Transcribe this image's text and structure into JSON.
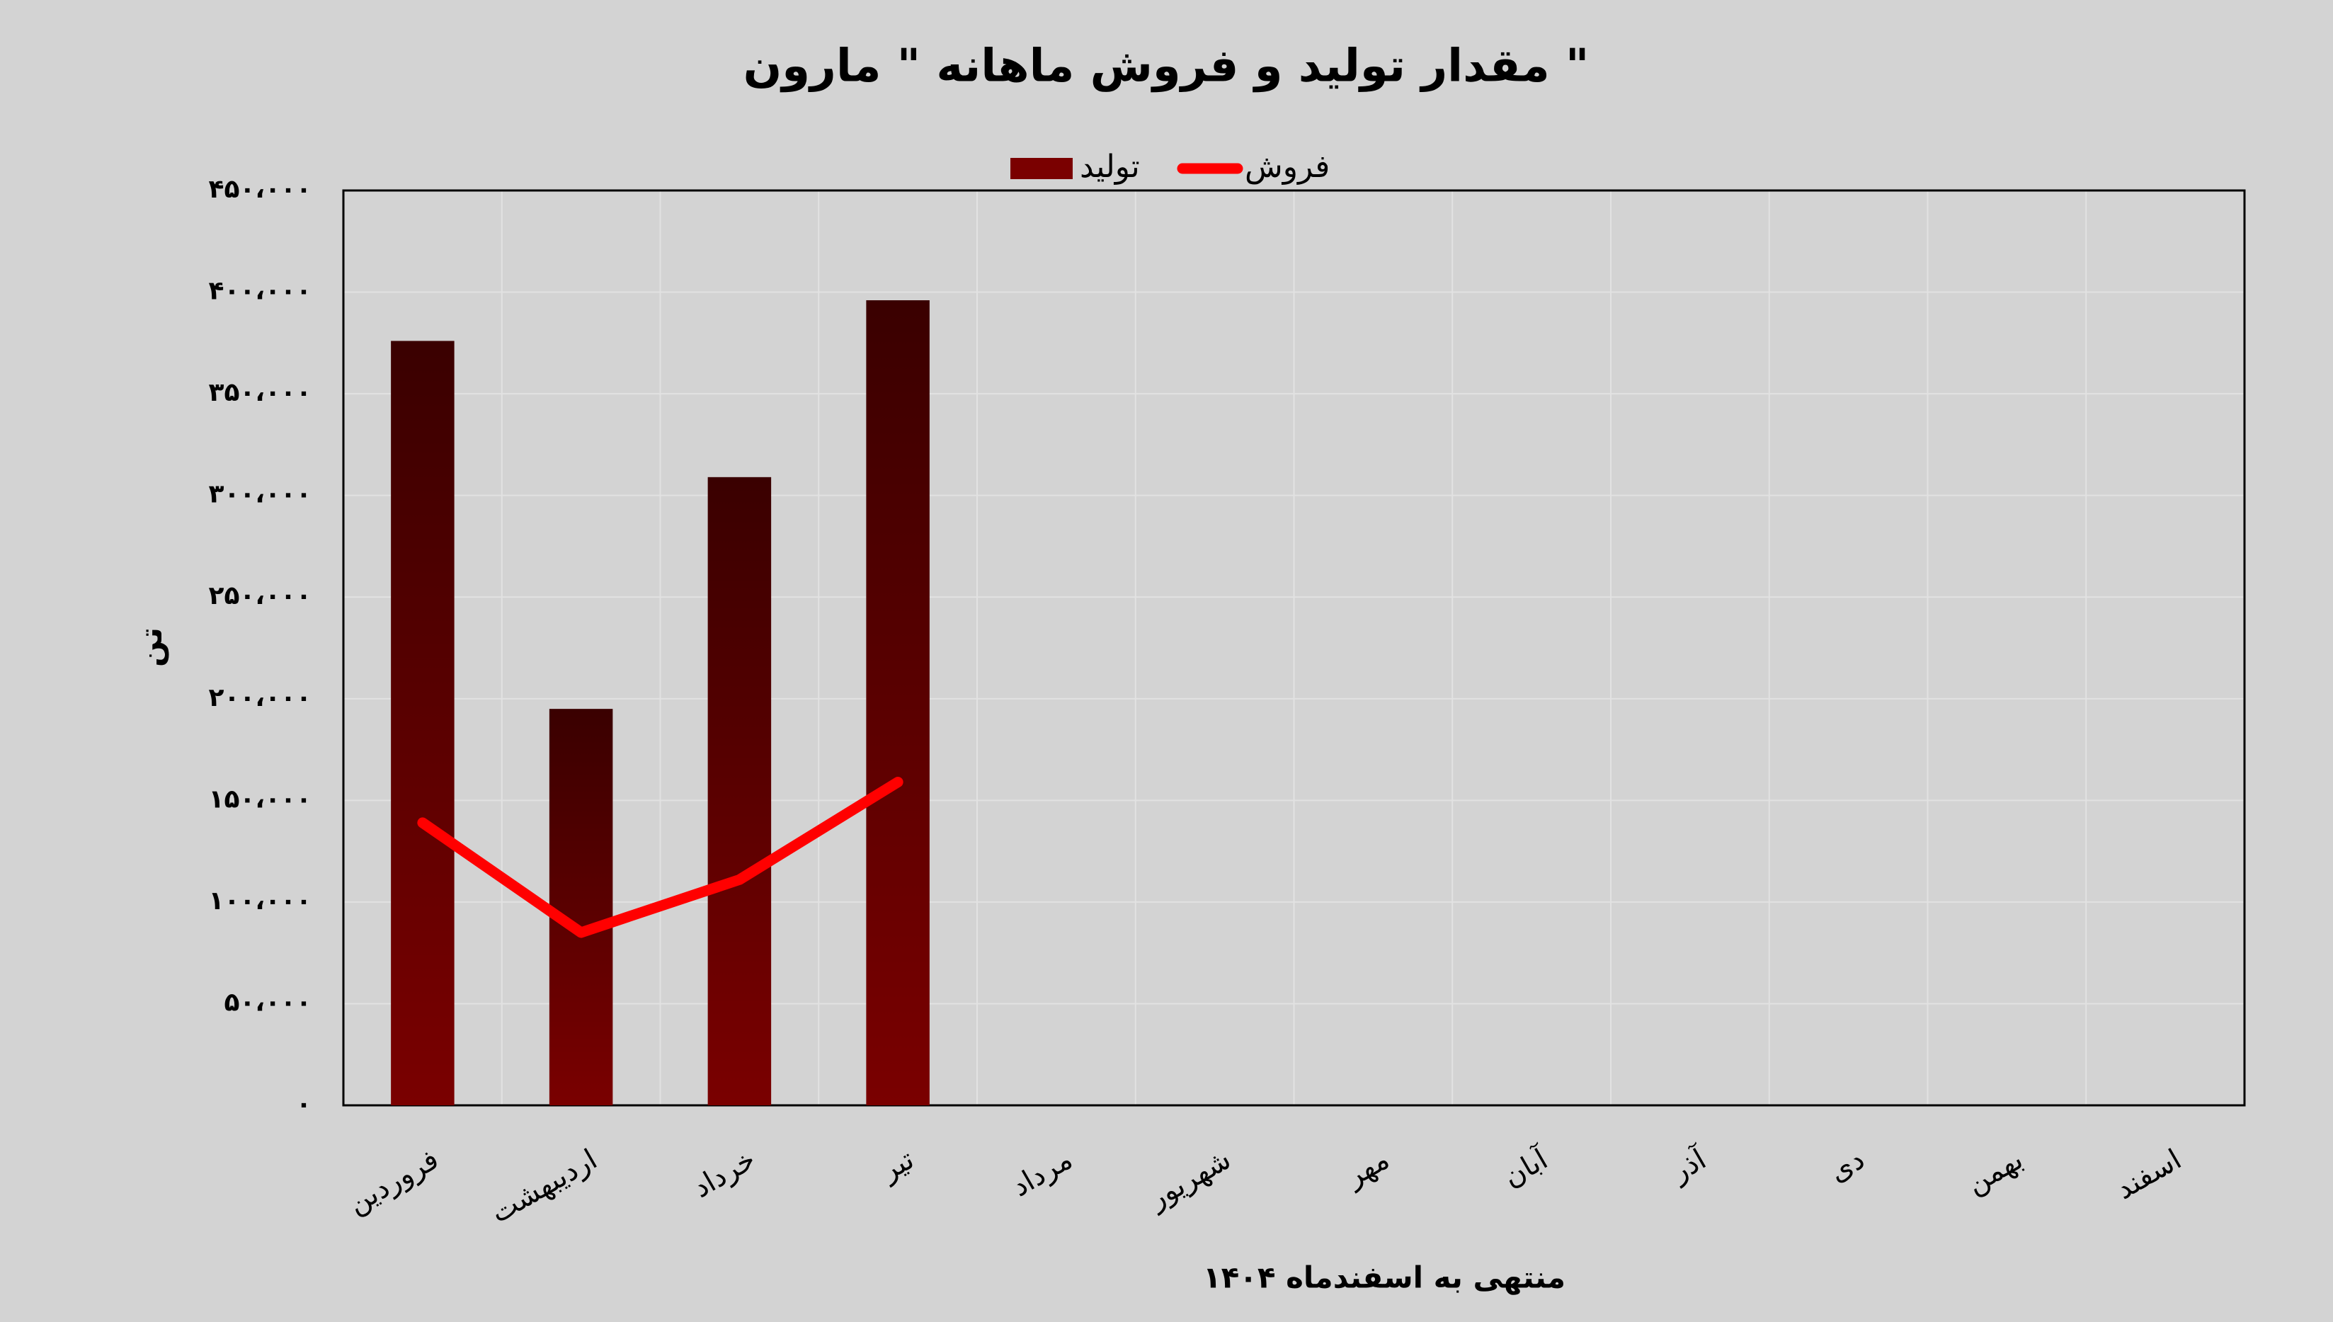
{
  "chart_data": {
    "type": "bar",
    "title": "مقدار تولید و فروش ماهانه \" مارون \"",
    "y_label": "تن",
    "x_label": "منتهی به اسفندماه ۱۴۰۴",
    "categories": [
      "فروردین",
      "اردیبهشت",
      "خرداد",
      "تیر",
      "مرداد",
      "شهریور",
      "مهر",
      "آبان",
      "آذر",
      "دی",
      "بهمن",
      "اسفند"
    ],
    "series": [
      {
        "name": "تولید",
        "type": "bar",
        "color": "#7a0000",
        "values": [
          376000,
          195000,
          309000,
          396000,
          null,
          null,
          null,
          null,
          null,
          null,
          null,
          null
        ]
      },
      {
        "name": "فروش",
        "type": "line",
        "color": "#ff0000",
        "values": [
          139000,
          85000,
          111000,
          159000,
          null,
          null,
          null,
          null,
          null,
          null,
          null,
          null
        ]
      }
    ],
    "ylim": [
      0,
      450000
    ],
    "yticks": [
      {
        "value": 0,
        "label": "۰"
      },
      {
        "value": 50000,
        "label": "۵۰،۰۰۰"
      },
      {
        "value": 100000,
        "label": "۱۰۰،۰۰۰"
      },
      {
        "value": 150000,
        "label": "۱۵۰،۰۰۰"
      },
      {
        "value": 200000,
        "label": "۲۰۰،۰۰۰"
      },
      {
        "value": 250000,
        "label": "۲۵۰،۰۰۰"
      },
      {
        "value": 300000,
        "label": "۳۰۰،۰۰۰"
      },
      {
        "value": 350000,
        "label": "۳۵۰،۰۰۰"
      },
      {
        "value": 400000,
        "label": "۴۰۰،۰۰۰"
      },
      {
        "value": 450000,
        "label": "۴۵۰،۰۰۰"
      }
    ],
    "grid": true,
    "legend": "top"
  }
}
